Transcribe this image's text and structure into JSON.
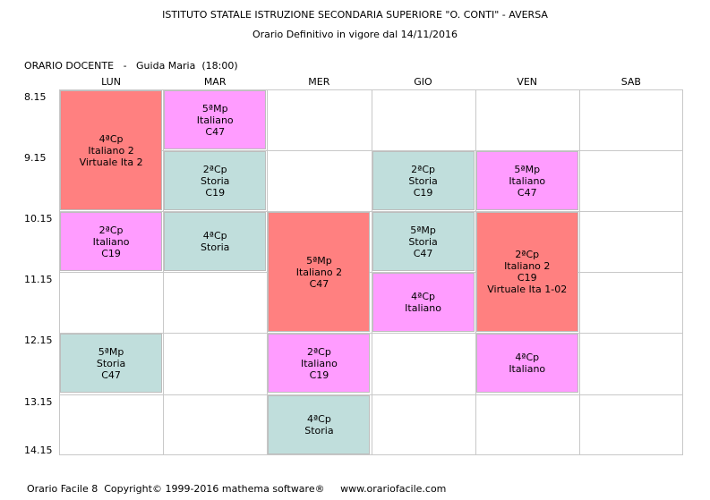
{
  "header": {
    "school": "ISTITUTO STATALE ISTRUZIONE SECONDARIA SUPERIORE \"O. CONTI\" - AVERSA",
    "subtitle": "Orario Definitivo in vigore dal 14/11/2016"
  },
  "teacher_line": "ORARIO DOCENTE   -   Guida Maria  (18:00)",
  "days": [
    "LUN",
    "MAR",
    "MER",
    "GIO",
    "VEN",
    "SAB"
  ],
  "times": [
    "8.15",
    "9.15",
    "10.15",
    "11.15",
    "12.15",
    "13.15",
    "14.15"
  ],
  "colors": {
    "red": "#ff8080",
    "pink": "#ff9cff",
    "teal": "#c0dedc",
    "grid": "#c8c8c8"
  },
  "lessons": [
    {
      "day": 0,
      "start": 0,
      "span": 2,
      "color": "red",
      "lines": [
        "4ªCp",
        "Italiano 2",
        "Virtuale Ita 2"
      ]
    },
    {
      "day": 0,
      "start": 2,
      "span": 1,
      "color": "pink",
      "lines": [
        "2ªCp",
        "Italiano",
        "C19"
      ]
    },
    {
      "day": 0,
      "start": 4,
      "span": 1,
      "color": "teal",
      "lines": [
        "5ªMp",
        "Storia",
        "C47"
      ]
    },
    {
      "day": 1,
      "start": 0,
      "span": 1,
      "color": "pink",
      "lines": [
        "5ªMp",
        "Italiano",
        "C47"
      ]
    },
    {
      "day": 1,
      "start": 1,
      "span": 1,
      "color": "teal",
      "lines": [
        "2ªCp",
        "Storia",
        "C19"
      ]
    },
    {
      "day": 1,
      "start": 2,
      "span": 1,
      "color": "teal",
      "lines": [
        "4ªCp",
        "Storia"
      ]
    },
    {
      "day": 2,
      "start": 2,
      "span": 2,
      "color": "red",
      "lines": [
        "5ªMp",
        "Italiano 2",
        "C47"
      ]
    },
    {
      "day": 2,
      "start": 4,
      "span": 1,
      "color": "pink",
      "lines": [
        "2ªCp",
        "Italiano",
        "C19"
      ]
    },
    {
      "day": 2,
      "start": 5,
      "span": 1,
      "color": "teal",
      "lines": [
        "4ªCp",
        "Storia"
      ]
    },
    {
      "day": 3,
      "start": 1,
      "span": 1,
      "color": "teal",
      "lines": [
        "2ªCp",
        "Storia",
        "C19"
      ]
    },
    {
      "day": 3,
      "start": 2,
      "span": 1,
      "color": "teal",
      "lines": [
        "5ªMp",
        "Storia",
        "C47"
      ]
    },
    {
      "day": 3,
      "start": 3,
      "span": 1,
      "color": "pink",
      "lines": [
        "4ªCp",
        "Italiano"
      ]
    },
    {
      "day": 4,
      "start": 1,
      "span": 1,
      "color": "pink",
      "lines": [
        "5ªMp",
        "Italiano",
        "C47"
      ]
    },
    {
      "day": 4,
      "start": 2,
      "span": 2,
      "color": "red",
      "lines": [
        "2ªCp",
        "Italiano 2",
        "C19",
        "Virtuale Ita 1-02"
      ]
    },
    {
      "day": 4,
      "start": 4,
      "span": 1,
      "color": "pink",
      "lines": [
        "4ªCp",
        "Italiano"
      ]
    }
  ],
  "footer": "Orario Facile 8  Copyright© 1999-2016 mathema software®     www.orariofacile.com"
}
